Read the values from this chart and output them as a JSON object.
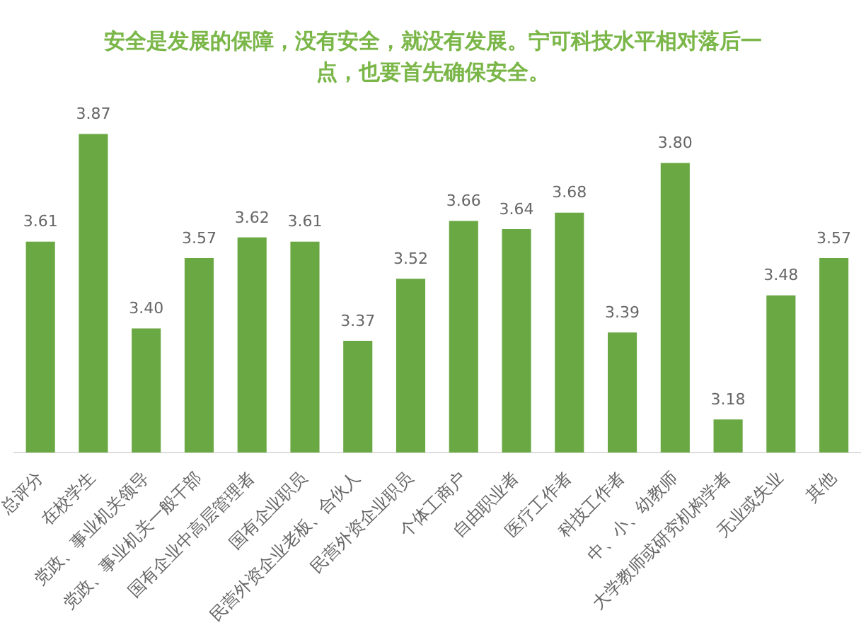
{
  "chart_data": {
    "type": "bar",
    "title": "安全是发展的保障，没有安全，就没有发展。宁可科技水平相对落后一点，也要首先确保安全。",
    "categories": [
      "总评分",
      "在校学生",
      "党政、事业机关领导",
      "党政、事业机关一般干部",
      "国有企业中高层管理者",
      "国有企业职员",
      "民营外资企业老板、合伙人",
      "民营外资企业职员",
      "个体工商户",
      "自由职业者",
      "医疗工作者",
      "科技工作者",
      "中、小、幼教师",
      "大学教师或研究机构学者",
      "无业或失业",
      "其他"
    ],
    "values": [
      3.61,
      3.87,
      3.4,
      3.57,
      3.62,
      3.61,
      3.37,
      3.52,
      3.66,
      3.64,
      3.68,
      3.39,
      3.8,
      3.18,
      3.48,
      3.57
    ],
    "value_labels": [
      "3.61",
      "3.87",
      "3.40",
      "3.57",
      "3.62",
      "3.61",
      "3.37",
      "3.52",
      "3.66",
      "3.64",
      "3.68",
      "3.39",
      "3.80",
      "3.18",
      "3.48",
      "3.57"
    ],
    "color": "#6aa843",
    "tick_labels": "x",
    "grid": false,
    "legend": false
  }
}
